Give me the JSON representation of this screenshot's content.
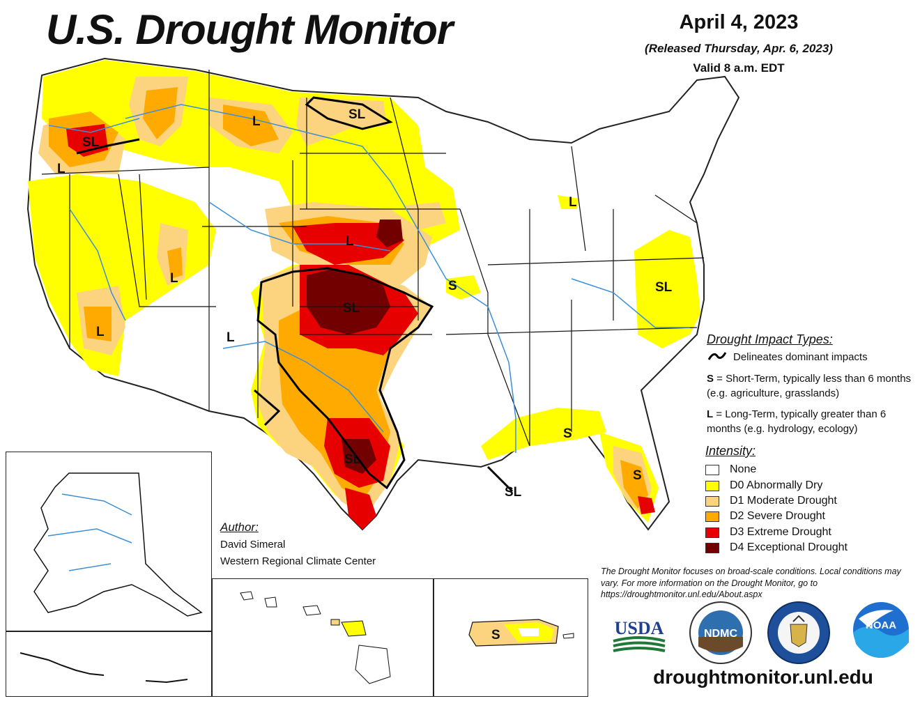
{
  "title": "U.S. Drought Monitor",
  "date": "April 4, 2023",
  "released": "(Released Thursday, Apr. 6, 2023)",
  "valid": "Valid 8 a.m. EDT",
  "impact_types": {
    "heading": "Drought Impact Types:",
    "delineates": "Delineates dominant impacts",
    "s_key": "S",
    "s_text": " = Short-Term, typically less than 6 months (e.g. agriculture, grasslands)",
    "l_key": "L",
    "l_text": " = Long-Term, typically greater than 6 months (e.g. hydrology, ecology)"
  },
  "intensity": {
    "heading": "Intensity:",
    "items": [
      {
        "label": "None",
        "color": "#ffffff"
      },
      {
        "label": "D0 Abnormally Dry",
        "color": "#ffff00"
      },
      {
        "label": "D1 Moderate Drought",
        "color": "#fcd37f"
      },
      {
        "label": "D2 Severe Drought",
        "color": "#ffaa00"
      },
      {
        "label": "D3 Extreme Drought",
        "color": "#e60000"
      },
      {
        "label": "D4 Exceptional Drought",
        "color": "#730000"
      }
    ]
  },
  "author": {
    "heading": "Author:",
    "name": "David Simeral",
    "org": "Western Regional Climate Center"
  },
  "disclaimer": "The Drought Monitor focuses on broad-scale conditions. Local conditions may vary. For more information on the Drought Monitor, go to https://droughtmonitor.unl.edu/About.aspx",
  "website": "droughtmonitor.unl.edu",
  "map_labels": {
    "wa_or": "SL",
    "or_sw": "L",
    "mt": "L",
    "nd": "SL",
    "ne": "L",
    "mi": "L",
    "ks_ok": "SL",
    "mo": "S",
    "va": "SL",
    "ut": "L",
    "nv_ca": "L",
    "nm": "L",
    "tx": "SL",
    "la": "SL",
    "al": "S",
    "fl": "S",
    "pr": "S"
  },
  "logos": {
    "usda": "USDA",
    "ndmc": "NDMC",
    "noaa": "NOAA"
  }
}
